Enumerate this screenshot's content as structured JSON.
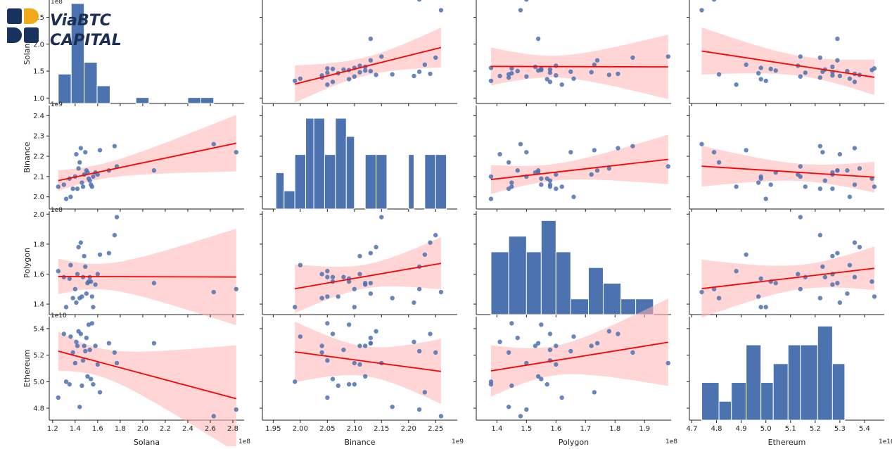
{
  "logo": {
    "line1": "ViaBTC",
    "line2": "CAPITAL",
    "navy": "#17325c",
    "gold": "#f3a81b"
  },
  "colors": {
    "hist": "#4c72b0",
    "point": "#4c72b0",
    "regline": "#ff0000",
    "band": "#ffb3b3"
  },
  "chart_data": {
    "type": "scatter",
    "variables": [
      "Solana",
      "Binance",
      "Polygon",
      "Ethereum"
    ],
    "axes": {
      "Solana": {
        "lim": [
          1.17,
          2.9
        ],
        "ticks": [
          "1.2",
          "1.4",
          "1.6",
          "1.8",
          "2.0",
          "2.2",
          "2.4",
          "2.6",
          "2.8"
        ],
        "tickvals": [
          1.2,
          1.4,
          1.6,
          1.8,
          2.0,
          2.2,
          2.4,
          2.6,
          2.8
        ],
        "offset": "1e8"
      },
      "Binance": {
        "lim": [
          1.93,
          2.29
        ],
        "ticks": [
          "1.95",
          "2.00",
          "2.05",
          "2.10",
          "2.15",
          "2.20",
          "2.25"
        ],
        "tickvals": [
          1.95,
          2.0,
          2.05,
          2.1,
          2.15,
          2.2,
          2.25
        ],
        "offset": "1e9"
      },
      "Polygon": {
        "lim": [
          1.33,
          1.99
        ],
        "ticks": [
          "1.4",
          "1.5",
          "1.6",
          "1.7",
          "1.8",
          "1.9"
        ],
        "tickvals": [
          1.4,
          1.5,
          1.6,
          1.7,
          1.8,
          1.9
        ],
        "yticks": [
          "1.4",
          "1.6",
          "1.8",
          "2.0"
        ],
        "ytickvals": [
          1.4,
          1.6,
          1.8,
          2.0
        ],
        "offset": "1e8"
      },
      "Ethereum": {
        "lim": [
          4.69,
          5.48
        ],
        "ticks": [
          "4.7",
          "4.8",
          "4.9",
          "5.0",
          "5.1",
          "5.2",
          "5.3",
          "5.4"
        ],
        "tickvals": [
          4.7,
          4.8,
          4.9,
          5.0,
          5.1,
          5.2,
          5.3,
          5.4
        ],
        "yticks": [
          "4.8",
          "5.0",
          "5.2",
          "5.4"
        ],
        "ytickvals": [
          4.8,
          5.0,
          5.2,
          5.4
        ],
        "offset": "1e10"
      }
    },
    "solana_yticks": [
      "1.0",
      "1.5",
      "2.0",
      "2.5"
    ],
    "solana_ytickvals": [
      1.0,
      1.5,
      2.0,
      2.5
    ],
    "binance_yticks": [
      "2.0",
      "2.1",
      "2.2",
      "2.3",
      "2.4"
    ],
    "binance_ytickvals": [
      2.0,
      2.1,
      2.2,
      2.3,
      2.4
    ],
    "observations": {
      "Solana": [
        1.25,
        1.3,
        1.32,
        1.35,
        1.36,
        1.38,
        1.4,
        1.41,
        1.42,
        1.43,
        1.44,
        1.45,
        1.46,
        1.47,
        1.48,
        1.49,
        1.5,
        1.51,
        1.52,
        1.53,
        1.54,
        1.55,
        1.56,
        1.58,
        1.6,
        1.62,
        1.7,
        1.75,
        1.77,
        2.1,
        2.63,
        2.83
      ],
      "Binance": [
        2.05,
        2.06,
        1.99,
        2.09,
        2.0,
        2.04,
        2.1,
        2.21,
        2.04,
        2.14,
        2.17,
        2.24,
        2.07,
        2.05,
        2.11,
        2.22,
        2.13,
        2.12,
        2.09,
        2.08,
        2.06,
        2.05,
        2.1,
        2.12,
        2.11,
        2.23,
        2.13,
        2.25,
        2.15,
        2.13,
        2.26,
        2.22
      ],
      "Polygon": [
        1.62,
        1.58,
        1.38,
        1.57,
        1.66,
        1.44,
        1.5,
        1.41,
        1.6,
        1.78,
        1.44,
        1.81,
        1.45,
        1.58,
        1.72,
        1.65,
        1.47,
        1.54,
        1.55,
        1.58,
        1.55,
        1.45,
        1.38,
        1.53,
        1.6,
        1.73,
        1.74,
        1.86,
        1.98,
        1.54,
        1.48,
        1.5
      ],
      "Ethereum": [
        4.88,
        5.36,
        5.0,
        4.98,
        5.34,
        5.22,
        5.14,
        5.3,
        5.27,
        5.38,
        4.81,
        5.36,
        4.97,
        5.16,
        5.27,
        5.23,
        5.33,
        5.04,
        5.43,
        5.24,
        5.02,
        5.44,
        4.98,
        5.27,
        5.13,
        4.92,
        5.29,
        5.22,
        5.14,
        5.29,
        4.74,
        4.79
      ]
    },
    "histograms": {
      "Solana": {
        "edges": [
          1.25,
          1.365,
          1.48,
          1.595,
          1.71,
          1.825,
          1.94,
          2.055,
          2.17,
          2.285,
          2.4,
          2.515,
          2.63,
          2.745,
          2.86
        ],
        "counts": [
          5,
          17,
          7,
          3,
          0,
          0,
          1,
          0,
          0,
          0,
          1,
          1,
          0,
          0
        ],
        "ylim": [
          0,
          17.6
        ]
      },
      "Binance": {
        "edges": [
          1.955,
          1.97,
          1.99,
          2.01,
          2.025,
          2.045,
          2.065,
          2.085,
          2.1,
          2.12,
          2.14,
          2.16,
          2.18,
          2.2,
          2.21,
          2.23,
          2.25,
          2.27
        ],
        "counts": [
          2,
          1,
          3,
          5,
          5,
          3,
          5,
          4,
          0,
          3,
          3,
          0,
          0,
          3,
          0,
          3,
          3
        ],
        "ylim": [
          0,
          5.7
        ]
      },
      "Polygon": {
        "edges": [
          1.38,
          1.44,
          1.5,
          1.55,
          1.6,
          1.65,
          1.71,
          1.76,
          1.82,
          1.87,
          1.93,
          1.98
        ],
        "counts": [
          4,
          5,
          4,
          6,
          4,
          1,
          3,
          2,
          1,
          1,
          0
        ],
        "ylim": [
          0,
          6.6
        ]
      },
      "Ethereum": {
        "edges": [
          4.74,
          4.81,
          4.86,
          4.92,
          4.98,
          5.03,
          5.09,
          5.14,
          5.21,
          5.27,
          5.32,
          5.39,
          5.45
        ],
        "counts": [
          2,
          1,
          2,
          4,
          2,
          3,
          4,
          4,
          5,
          3,
          0,
          0
        ],
        "ylim": [
          0,
          5.5
        ]
      }
    }
  }
}
